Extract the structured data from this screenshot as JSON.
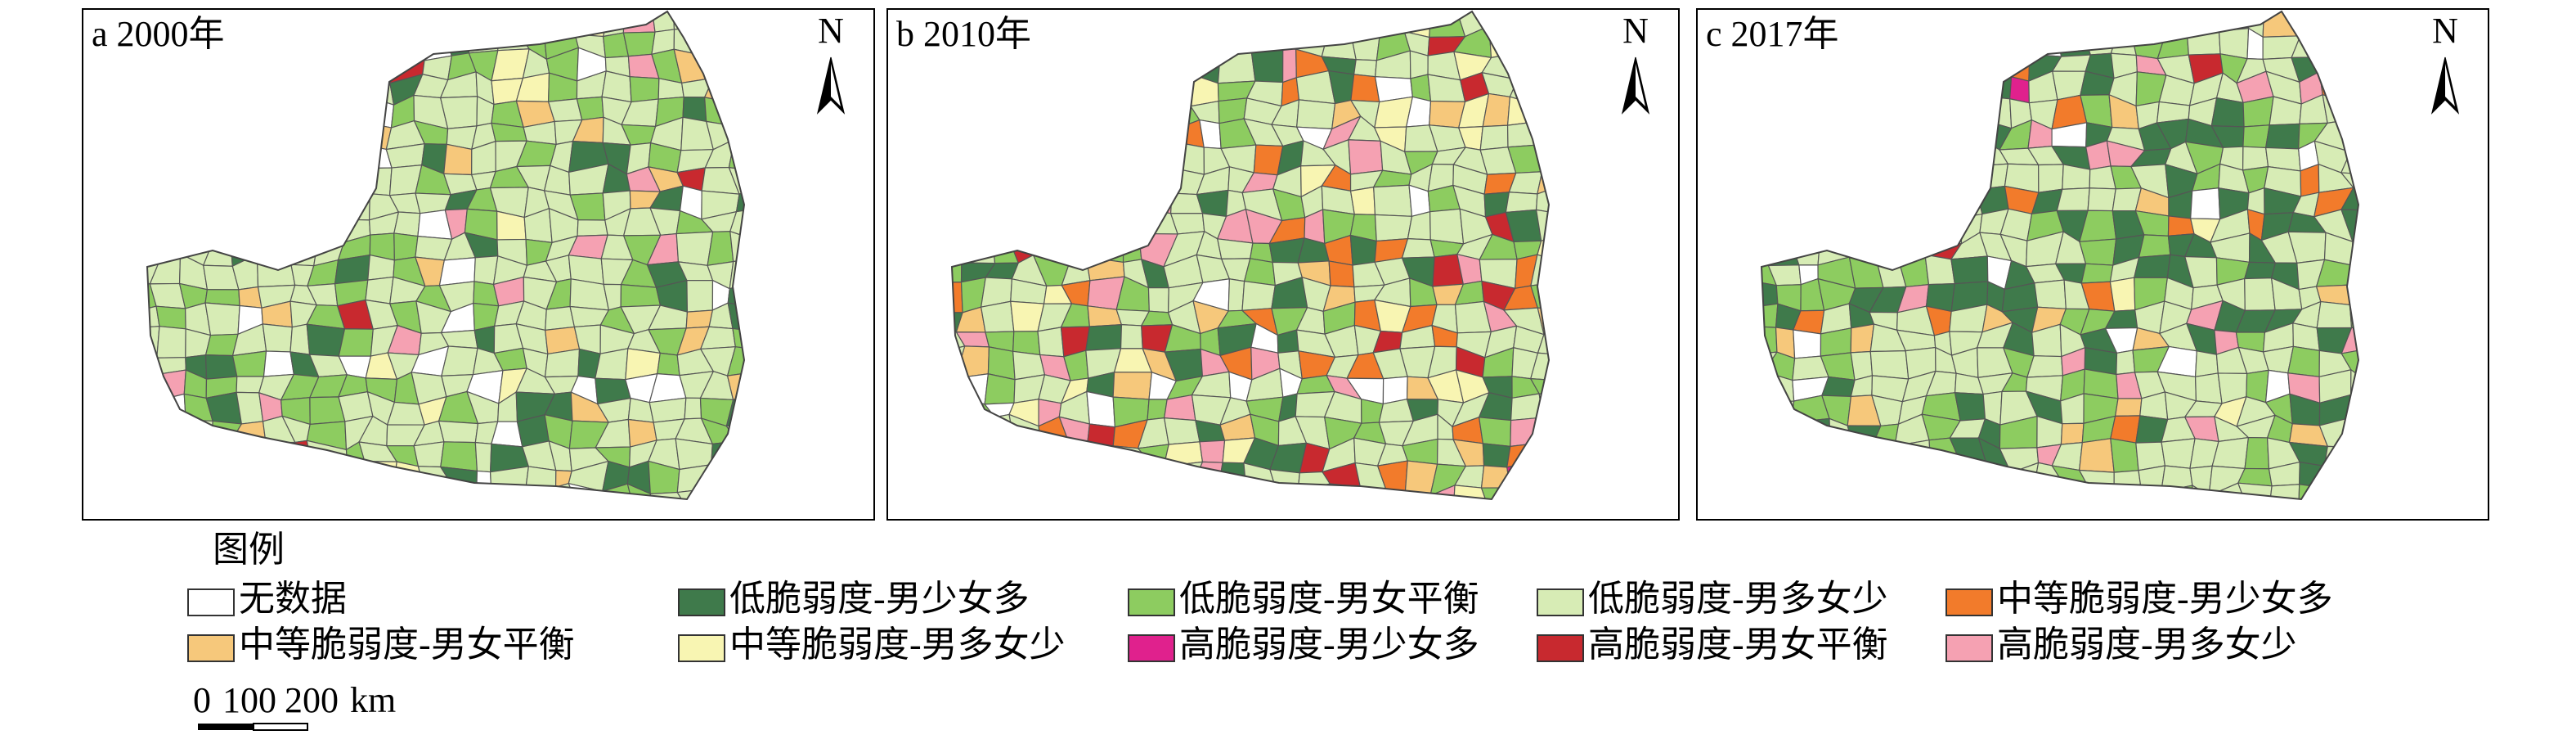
{
  "panels": [
    {
      "title": "a 2000年",
      "north": "N"
    },
    {
      "title": "b 2010年",
      "north": "N"
    },
    {
      "title": "c 2017年",
      "north": "N"
    }
  ],
  "legend": {
    "title": "图例",
    "items": [
      {
        "label": "无数据",
        "color": "#ffffff"
      },
      {
        "label": "低脆弱度-男少女多",
        "color": "#3f7a4b"
      },
      {
        "label": "低脆弱度-男女平衡",
        "color": "#8dcc60"
      },
      {
        "label": "低脆弱度-男多女少",
        "color": "#d7ecb5"
      },
      {
        "label": "中等脆弱度-男少女多",
        "color": "#f27b2b"
      },
      {
        "label": "中等脆弱度-男女平衡",
        "color": "#f6c87b"
      },
      {
        "label": "中等脆弱度-男多女少",
        "color": "#f8f5b2"
      },
      {
        "label": "高脆弱度-男少女多",
        "color": "#e0218d"
      },
      {
        "label": "高脆弱度-男女平衡",
        "color": "#c8292f"
      },
      {
        "label": "高脆弱度-男多女少",
        "color": "#f5a1b2"
      }
    ]
  },
  "scale_bar": {
    "labels": [
      "0",
      "100",
      "200",
      "km"
    ]
  }
}
